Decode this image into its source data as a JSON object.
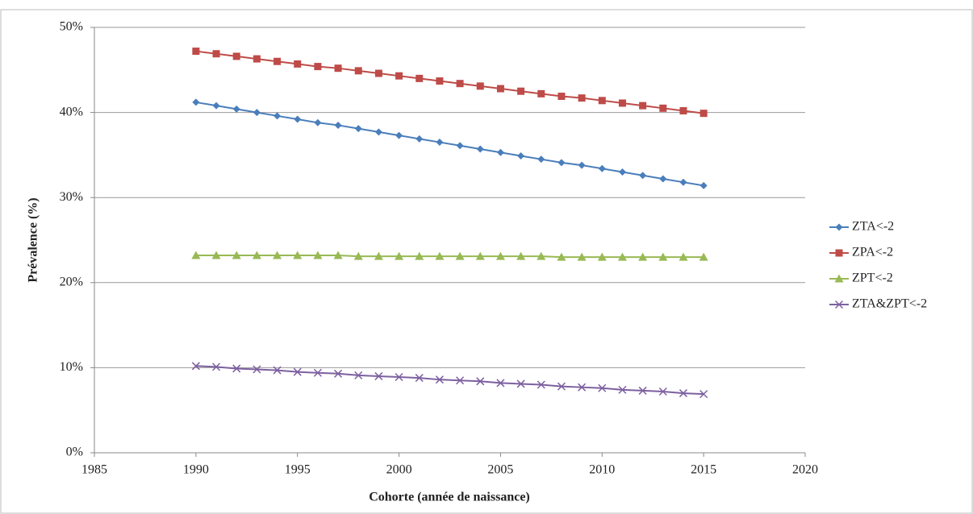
{
  "chart_data": {
    "type": "line",
    "x_label": "Cohorte (année de naissance)",
    "y_label": "Prévalence (%)",
    "x": [
      1990,
      1991,
      1992,
      1993,
      1994,
      1995,
      1996,
      1997,
      1998,
      1999,
      2000,
      2001,
      2002,
      2003,
      2004,
      2005,
      2006,
      2007,
      2008,
      2009,
      2010,
      2011,
      2012,
      2013,
      2014,
      2015
    ],
    "series": [
      {
        "name": "ZTA<-2",
        "color": "#4a7ebb",
        "marker": "diamond",
        "values": [
          41.2,
          40.8,
          40.4,
          40.0,
          39.6,
          39.2,
          38.8,
          38.5,
          38.1,
          37.7,
          37.3,
          36.9,
          36.5,
          36.1,
          35.7,
          35.3,
          34.9,
          34.5,
          34.1,
          33.8,
          33.4,
          33.0,
          32.6,
          32.2,
          31.8,
          31.4
        ]
      },
      {
        "name": "ZPA<-2",
        "color": "#be4b48",
        "marker": "square",
        "values": [
          47.2,
          46.9,
          46.6,
          46.3,
          46.0,
          45.7,
          45.4,
          45.2,
          44.9,
          44.6,
          44.3,
          44.0,
          43.7,
          43.4,
          43.1,
          42.8,
          42.5,
          42.2,
          41.9,
          41.7,
          41.4,
          41.1,
          40.8,
          40.5,
          40.2,
          39.9
        ]
      },
      {
        "name": "ZPT<-2",
        "color": "#98b954",
        "marker": "triangle",
        "values": [
          23.2,
          23.2,
          23.2,
          23.2,
          23.2,
          23.2,
          23.2,
          23.2,
          23.1,
          23.1,
          23.1,
          23.1,
          23.1,
          23.1,
          23.1,
          23.1,
          23.1,
          23.1,
          23.0,
          23.0,
          23.0,
          23.0,
          23.0,
          23.0,
          23.0,
          23.0
        ]
      },
      {
        "name": "ZTA&ZPT<-2",
        "color": "#7d60a0",
        "marker": "x",
        "values": [
          10.2,
          10.1,
          9.9,
          9.8,
          9.7,
          9.5,
          9.4,
          9.3,
          9.1,
          9.0,
          8.9,
          8.8,
          8.6,
          8.5,
          8.4,
          8.2,
          8.1,
          8.0,
          7.8,
          7.7,
          7.6,
          7.4,
          7.3,
          7.2,
          7.0,
          6.9
        ]
      }
    ],
    "xlim": [
      1985,
      2020
    ],
    "xticks": [
      1985,
      1990,
      1995,
      2000,
      2005,
      2010,
      2015,
      2020
    ],
    "ylim": [
      0,
      50
    ],
    "yticks": [
      {
        "value": 0,
        "label": "0%"
      },
      {
        "value": 10,
        "label": "10%"
      },
      {
        "value": 20,
        "label": "20%"
      },
      {
        "value": 30,
        "label": "30%"
      },
      {
        "value": 40,
        "label": "40%"
      },
      {
        "value": 50,
        "label": "50%"
      }
    ],
    "grid": true,
    "legend": "right"
  }
}
